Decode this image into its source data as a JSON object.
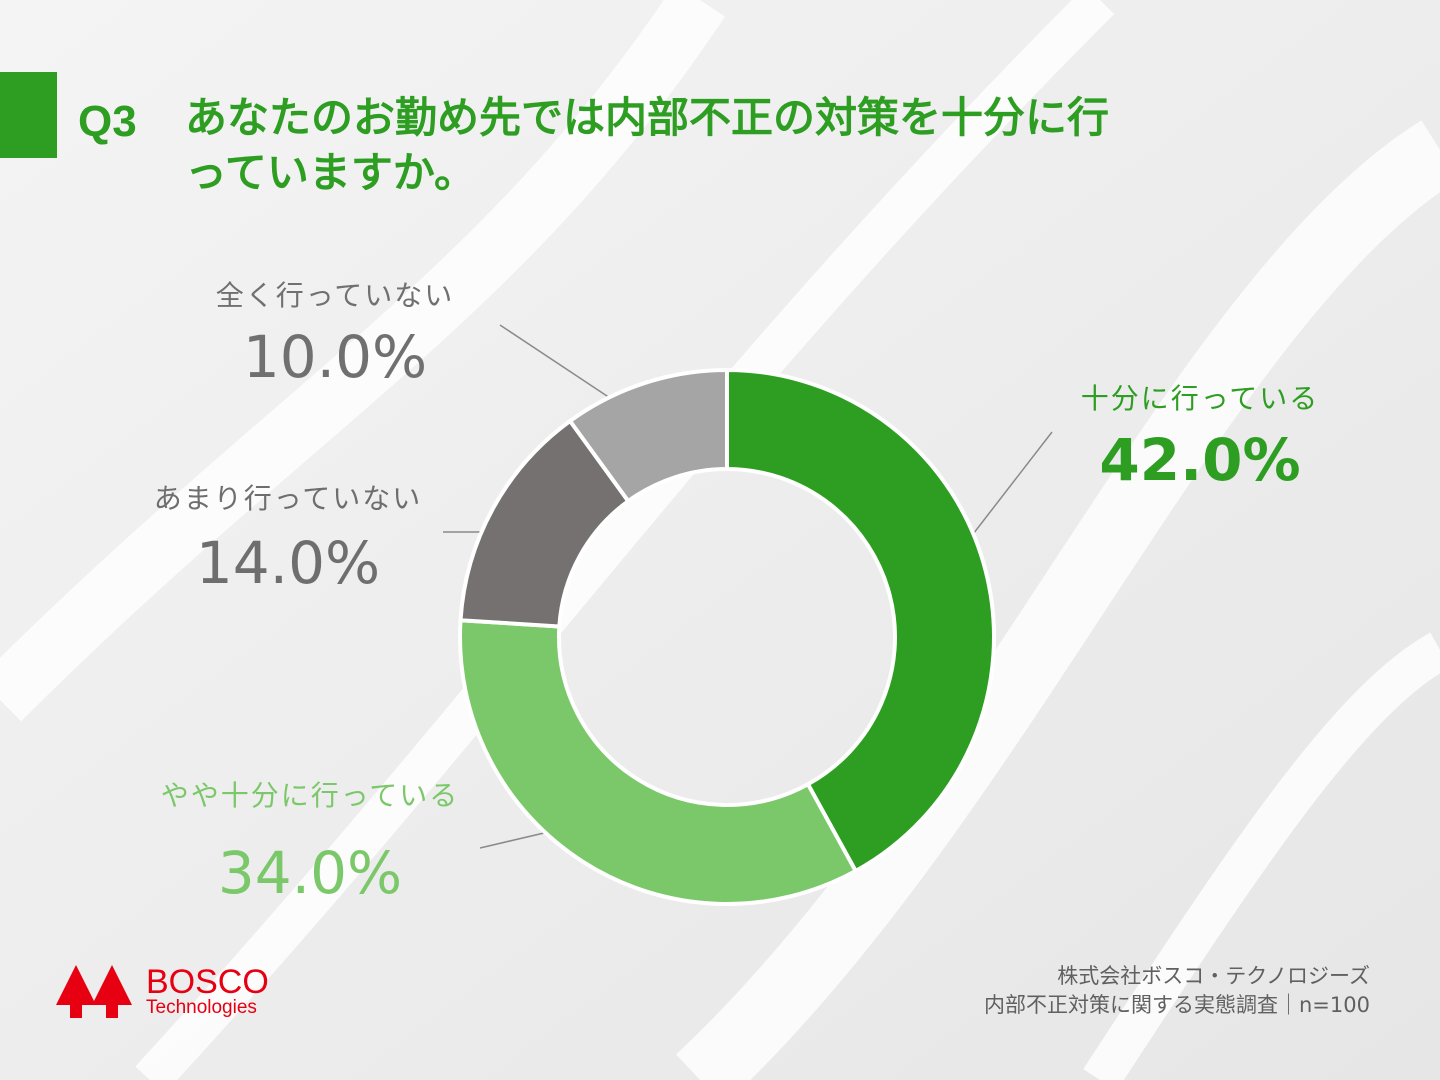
{
  "question": "Q3",
  "title": "あなたのお勤め先では内部不正の対策を十分に行っていますか。",
  "chart_data": {
    "type": "donut",
    "categories": [
      "十分に行っている",
      "やや十分に行っている",
      "あまり行っていない",
      "全く行っていない"
    ],
    "values": [
      42,
      34,
      14,
      10
    ],
    "value_labels": [
      "42.0%",
      "34.0%",
      "14.0%",
      "10.0%"
    ],
    "colors": [
      "#2e9e23",
      "#7bc86a",
      "#767171",
      "#a5a5a5"
    ]
  },
  "footer": {
    "company": "株式会社ボスコ・テクノロジーズ",
    "survey": "内部不正対策に関する実態調査｜n=100"
  },
  "logo": {
    "name": "BOSCO",
    "sub": "Technologies"
  }
}
